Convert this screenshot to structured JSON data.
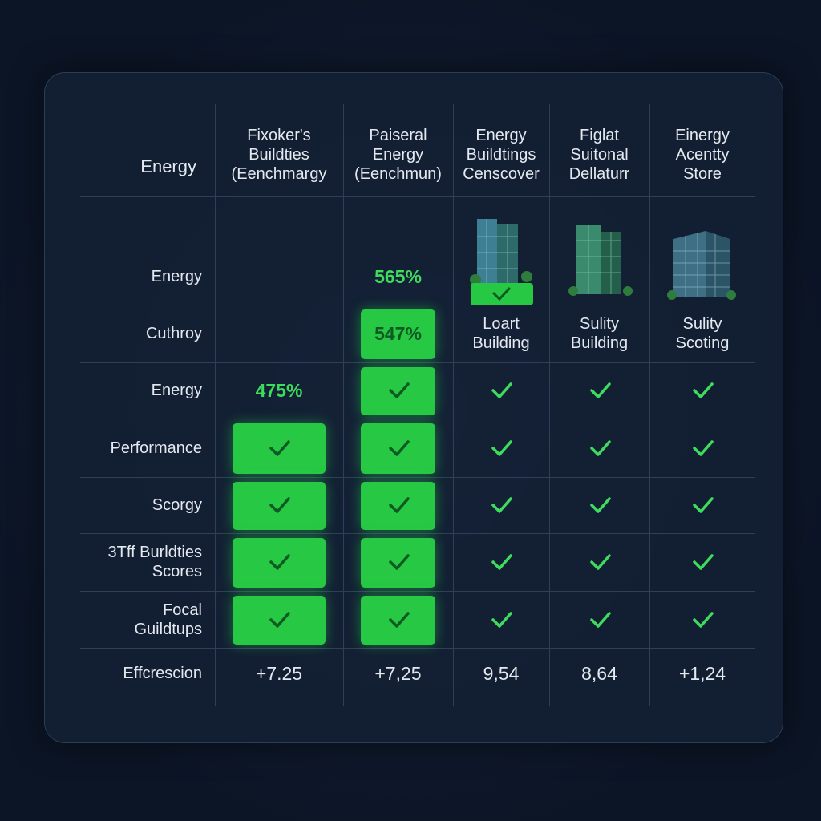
{
  "table": {
    "corner": "Energy",
    "columns": [
      [
        "Fixoker's",
        "Buildties",
        "(Eenchmargy"
      ],
      [
        "Paiseral",
        "Energy",
        "(Eenchmun)"
      ],
      [
        "Energy",
        "Buildtings",
        "Censcover"
      ],
      [
        "Figlat",
        "Suitonal",
        "Dellaturr"
      ],
      [
        "Einergy",
        "Acentty",
        "Store"
      ]
    ],
    "rows": [
      {
        "label": [
          "Energy"
        ],
        "cells": [
          null,
          {
            "text": "565%",
            "color": "#3ddc5c"
          },
          null,
          null,
          null
        ]
      },
      {
        "label": [
          "Cuthroy"
        ],
        "cells": [
          null,
          {
            "text": "547%",
            "color": "#0f5a22",
            "boxed": true
          },
          {
            "lines": [
              "Loart",
              "Building"
            ]
          },
          {
            "lines": [
              "Sulity",
              "Building"
            ]
          },
          {
            "lines": [
              "Sulity",
              "Scoting"
            ]
          }
        ]
      },
      {
        "label": [
          "Energy"
        ],
        "cells": [
          {
            "text": "475%",
            "color": "#3ddc5c"
          },
          {
            "check": true,
            "boxed": true
          },
          {
            "check": true
          },
          {
            "check": true
          },
          {
            "check": true
          }
        ]
      },
      {
        "label": [
          "Performance"
        ],
        "cells": [
          {
            "check": true,
            "boxed": true
          },
          {
            "check": true,
            "boxed": true
          },
          {
            "check": true
          },
          {
            "check": true
          },
          {
            "check": true
          }
        ]
      },
      {
        "label": [
          "Scorgy"
        ],
        "cells": [
          {
            "check": true,
            "boxed": true
          },
          {
            "check": true,
            "boxed": true
          },
          {
            "check": true
          },
          {
            "check": true
          },
          {
            "check": true
          }
        ]
      },
      {
        "label": [
          "3Tff Burldties",
          "Scores"
        ],
        "cells": [
          {
            "check": true,
            "boxed": true
          },
          {
            "check": true,
            "boxed": true
          },
          {
            "check": true
          },
          {
            "check": true
          },
          {
            "check": true
          }
        ]
      },
      {
        "label": [
          "Focal",
          "Guildtups"
        ],
        "cells": [
          {
            "check": true,
            "boxed": true
          },
          {
            "check": true,
            "boxed": true
          },
          {
            "check": true
          },
          {
            "check": true
          },
          {
            "check": true
          }
        ]
      },
      {
        "label": [
          "Effcrescion"
        ],
        "cells": [
          {
            "text": "+7.25"
          },
          {
            "text": "+7,25"
          },
          {
            "text": "9,54"
          },
          {
            "text": "8,64"
          },
          {
            "text": "+1,24"
          }
        ]
      }
    ]
  }
}
